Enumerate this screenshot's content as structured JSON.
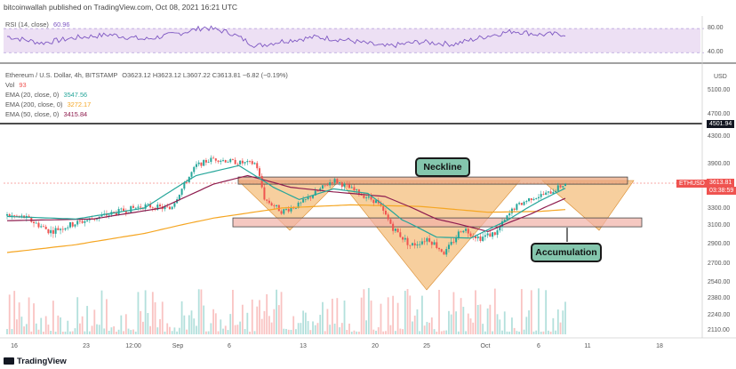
{
  "header": "bitcoinwallah published on TradingView.com, Oct 08, 2021 16:21 UTC",
  "footer_logo": "TradingView",
  "rsi": {
    "label": "RSI (14, close)",
    "value": "60.96",
    "ticks": [
      "80.00",
      "40.00"
    ]
  },
  "legend": {
    "symbol": "Ethereum / U.S. Dollar, 4h, BITSTAMP",
    "ohlc": "O3623.12  H3623.12  L3607.22  C3613.81  −6.82 (−0.19%)",
    "vol_label": "Vol",
    "vol_value": "93",
    "ema20_label": "EMA (20, close, 0)",
    "ema20_value": "3547.56",
    "ema200_label": "EMA (200, close, 0)",
    "ema200_value": "3272.17",
    "ema50_label": "EMA (50, close, 0)",
    "ema50_value": "3415.84"
  },
  "annotations": {
    "neckline": "Neckline",
    "accumulation": "Accumulation",
    "price_tag_symbol": "ETHUSD",
    "price_tag_value": "3613.81",
    "price_tag_time": "03:38:59",
    "level_tag": "4501.94",
    "usd": "USD"
  },
  "colors": {
    "up": "#26a69a",
    "down": "#ef5350",
    "ema20": "#26a69a",
    "ema200": "#f5a623",
    "ema50": "#8e1c4e",
    "pattern_fill": "#f0a84e",
    "neckline_box": "#e9a57f",
    "rsi_line": "#7e57c2",
    "rsi_band": "#ede0f4"
  },
  "chart_data": {
    "type": "candlestick",
    "y_axis_ticks": [
      "5100.00",
      "4700.00",
      "4501.94",
      "4300.00",
      "3900.00",
      "3613.81",
      "3300.00",
      "3100.00",
      "2900.00",
      "2700.00",
      "2540.00",
      "2380.00",
      "2240.00",
      "2110.00"
    ],
    "x_axis_ticks": [
      "16",
      "23",
      "12:00",
      "Sep",
      "6",
      "13",
      "20",
      "25",
      "Oct",
      "6",
      "11",
      "18"
    ],
    "price_anchors": [
      {
        "x": 0,
        "price": 3200
      },
      {
        "x": 2,
        "price": 3180
      },
      {
        "x": 5,
        "price": 3020
      },
      {
        "x": 8,
        "price": 3110
      },
      {
        "x": 12,
        "price": 3220
      },
      {
        "x": 16,
        "price": 3320
      },
      {
        "x": 19,
        "price": 3280
      },
      {
        "x": 22,
        "price": 3860
      },
      {
        "x": 24,
        "price": 3960
      },
      {
        "x": 27,
        "price": 3900
      },
      {
        "x": 29,
        "price": 3890
      },
      {
        "x": 30,
        "price": 3400
      },
      {
        "x": 32,
        "price": 3250
      },
      {
        "x": 34,
        "price": 3330
      },
      {
        "x": 38,
        "price": 3660
      },
      {
        "x": 41,
        "price": 3480
      },
      {
        "x": 43,
        "price": 3370
      },
      {
        "x": 45,
        "price": 3050
      },
      {
        "x": 47,
        "price": 2870
      },
      {
        "x": 49,
        "price": 2950
      },
      {
        "x": 51,
        "price": 2790
      },
      {
        "x": 53,
        "price": 3060
      },
      {
        "x": 55,
        "price": 2950
      },
      {
        "x": 57,
        "price": 3010
      },
      {
        "x": 59,
        "price": 3290
      },
      {
        "x": 61,
        "price": 3420
      },
      {
        "x": 63,
        "price": 3480
      },
      {
        "x": 65,
        "price": 3610
      }
    ],
    "ema20_anchors": [
      {
        "x": 0,
        "price": 3190
      },
      {
        "x": 8,
        "price": 3160
      },
      {
        "x": 16,
        "price": 3290
      },
      {
        "x": 22,
        "price": 3720
      },
      {
        "x": 27,
        "price": 3860
      },
      {
        "x": 31,
        "price": 3560
      },
      {
        "x": 34,
        "price": 3400
      },
      {
        "x": 38,
        "price": 3540
      },
      {
        "x": 42,
        "price": 3480
      },
      {
        "x": 46,
        "price": 3150
      },
      {
        "x": 50,
        "price": 2960
      },
      {
        "x": 54,
        "price": 2950
      },
      {
        "x": 58,
        "price": 3130
      },
      {
        "x": 62,
        "price": 3380
      },
      {
        "x": 65,
        "price": 3547
      }
    ],
    "ema50_anchors": [
      {
        "x": 0,
        "price": 3140
      },
      {
        "x": 10,
        "price": 3160
      },
      {
        "x": 18,
        "price": 3290
      },
      {
        "x": 24,
        "price": 3600
      },
      {
        "x": 28,
        "price": 3720
      },
      {
        "x": 33,
        "price": 3560
      },
      {
        "x": 38,
        "price": 3500
      },
      {
        "x": 44,
        "price": 3440
      },
      {
        "x": 50,
        "price": 3160
      },
      {
        "x": 56,
        "price": 3020
      },
      {
        "x": 61,
        "price": 3220
      },
      {
        "x": 65,
        "price": 3415
      }
    ],
    "ema200_anchors": [
      {
        "x": 0,
        "price": 2800
      },
      {
        "x": 8,
        "price": 2880
      },
      {
        "x": 16,
        "price": 3000
      },
      {
        "x": 24,
        "price": 3170
      },
      {
        "x": 32,
        "price": 3290
      },
      {
        "x": 40,
        "price": 3330
      },
      {
        "x": 48,
        "price": 3310
      },
      {
        "x": 56,
        "price": 3240
      },
      {
        "x": 62,
        "price": 3250
      },
      {
        "x": 65,
        "price": 3272
      }
    ],
    "rsi_anchors": [
      {
        "x": 0,
        "v": 57
      },
      {
        "x": 4,
        "v": 46
      },
      {
        "x": 8,
        "v": 55
      },
      {
        "x": 12,
        "v": 60
      },
      {
        "x": 16,
        "v": 52
      },
      {
        "x": 20,
        "v": 62
      },
      {
        "x": 23,
        "v": 72
      },
      {
        "x": 26,
        "v": 63
      },
      {
        "x": 29,
        "v": 41
      },
      {
        "x": 32,
        "v": 49
      },
      {
        "x": 36,
        "v": 56
      },
      {
        "x": 40,
        "v": 50
      },
      {
        "x": 44,
        "v": 40
      },
      {
        "x": 48,
        "v": 48
      },
      {
        "x": 52,
        "v": 44
      },
      {
        "x": 56,
        "v": 58
      },
      {
        "x": 59,
        "v": 66
      },
      {
        "x": 62,
        "v": 60
      },
      {
        "x": 65,
        "v": 61
      }
    ],
    "neckline_price": 3650,
    "accumulation_price": 3120
  }
}
